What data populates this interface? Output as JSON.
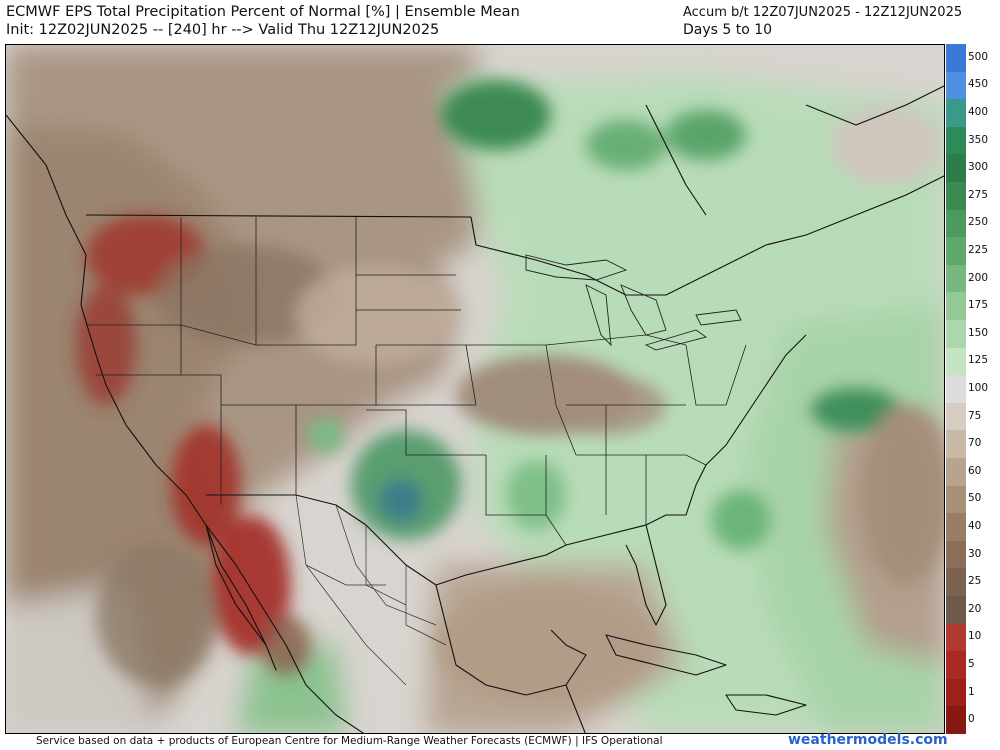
{
  "header": {
    "title_line1": "ECMWF EPS Total Precipitation Percent of Normal [%] | Ensemble Mean",
    "title_line2": "Init: 12Z02JUN2025 -- [240] hr --> Valid Thu 12Z12JUN2025",
    "right_line1": "Accum b/t 12Z07JUN2025 - 12Z12JUN2025",
    "right_line2": "Days 5 to 10"
  },
  "colorbar": {
    "labels": [
      "500",
      "450",
      "400",
      "350",
      "300",
      "275",
      "250",
      "225",
      "200",
      "175",
      "150",
      "125",
      "100",
      "75",
      "70",
      "60",
      "50",
      "40",
      "30",
      "25",
      "20",
      "10",
      "5",
      "1",
      "0"
    ],
    "colors": [
      "#3a79d8",
      "#4f8fe0",
      "#3a9a8a",
      "#2f8a5a",
      "#2e7c4a",
      "#3c8a52",
      "#4c9a5e",
      "#5ea86a",
      "#78b880",
      "#94c896",
      "#acd6ae",
      "#c4e2c4",
      "#dcdcdc",
      "#d6ccc0",
      "#c8b8a6",
      "#b8a48e",
      "#a89078",
      "#987e66",
      "#8a6e58",
      "#7c6250",
      "#6e5a4c",
      "#b03a30",
      "#a82a22",
      "#9e201a",
      "#8a1812"
    ]
  },
  "footer": {
    "credit": "Service based on data + products of European Centre for Medium-Range Weather Forecasts (ECMWF) | IFS Operational",
    "brand": "weathermodels.com"
  }
}
